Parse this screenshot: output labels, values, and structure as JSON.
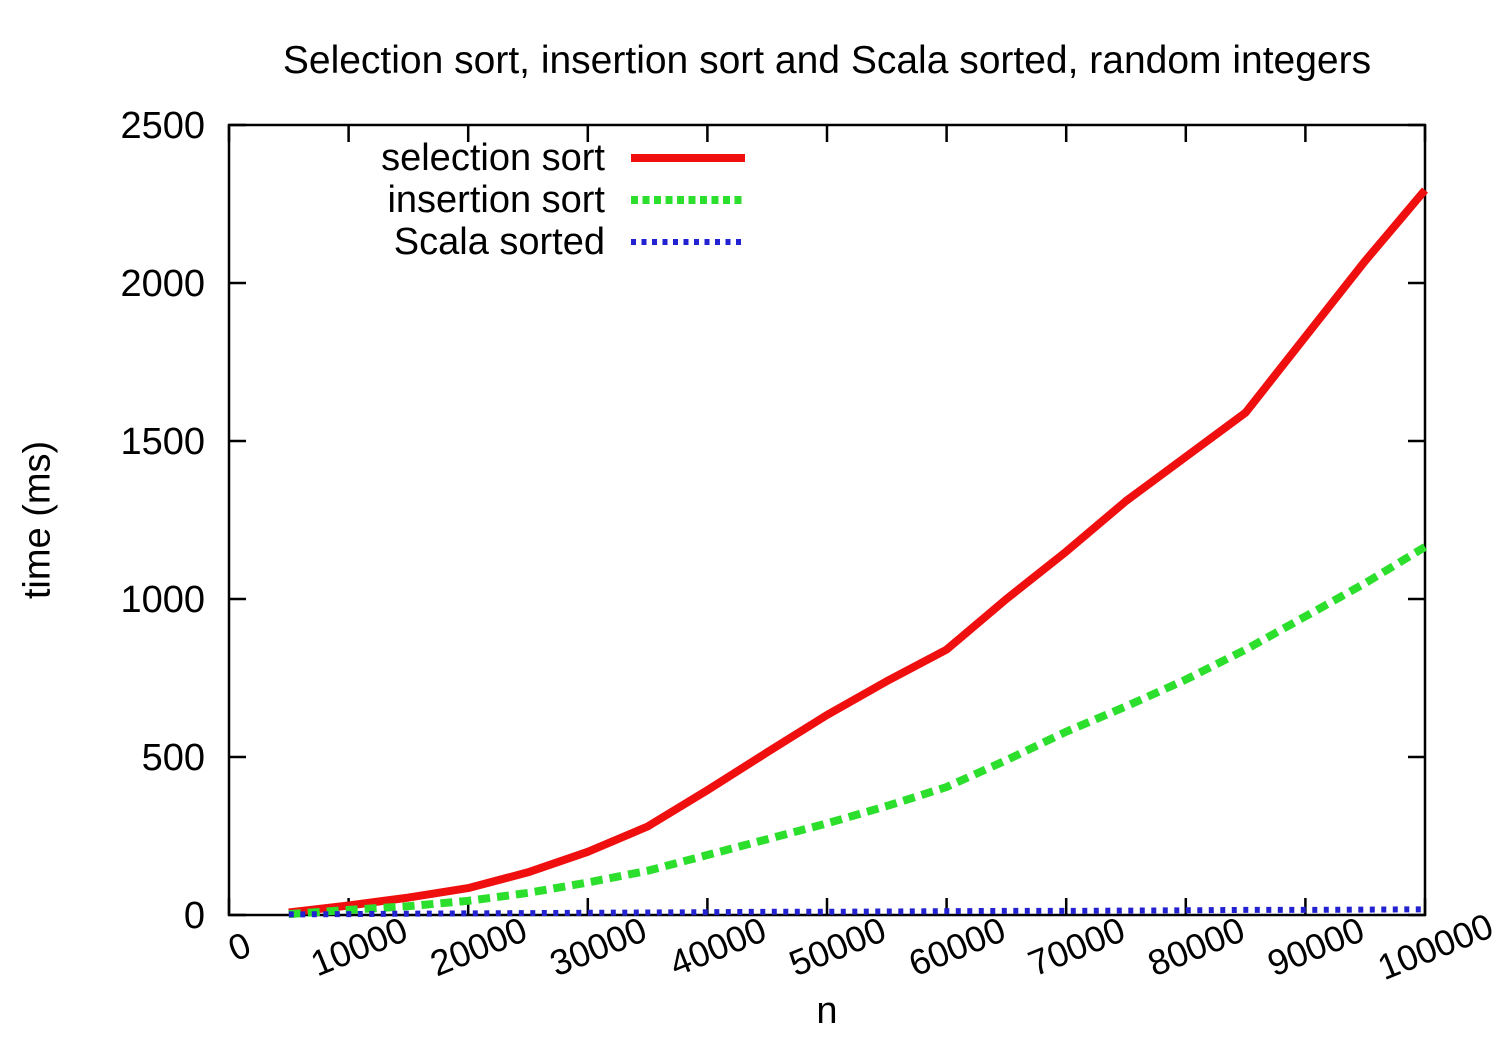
{
  "chart_data": {
    "type": "line",
    "title": "Selection sort, insertion sort and Scala sorted, random integers",
    "xlabel": "n",
    "ylabel": "time (ms)",
    "xlim": [
      0,
      100000
    ],
    "ylim": [
      0,
      2500
    ],
    "x_ticks": [
      0,
      10000,
      20000,
      30000,
      40000,
      50000,
      60000,
      70000,
      80000,
      90000,
      100000
    ],
    "y_ticks": [
      0,
      500,
      1000,
      1500,
      2000,
      2500
    ],
    "grid": false,
    "legend_position": "inside top-left",
    "axis_color": "#000000",
    "x": [
      5000,
      10000,
      15000,
      20000,
      25000,
      30000,
      35000,
      40000,
      45000,
      50000,
      55000,
      60000,
      65000,
      70000,
      75000,
      80000,
      85000,
      90000,
      95000,
      100000
    ],
    "series": [
      {
        "name": "selection sort",
        "color": "#f00f0f",
        "style": "solid",
        "line_width": 8,
        "values": [
          8,
          30,
          55,
          85,
          135,
          200,
          280,
          395,
          515,
          633,
          740,
          840,
          1000,
          1150,
          1310,
          1450,
          1590,
          1830,
          2070,
          2294
        ]
      },
      {
        "name": "insertion sort",
        "color": "#2cdf2c",
        "style": "dashed",
        "line_width": 8,
        "values": [
          3,
          16,
          28,
          45,
          70,
          103,
          140,
          190,
          240,
          290,
          345,
          405,
          490,
          580,
          660,
          745,
          840,
          945,
          1050,
          1165
        ]
      },
      {
        "name": "Scala sorted",
        "color": "#2222d2",
        "style": "dotted",
        "line_width": 6,
        "values": [
          2,
          3,
          4,
          5,
          6,
          7,
          8,
          9,
          10,
          10,
          11,
          12,
          13,
          13,
          14,
          15,
          16,
          16,
          17,
          18
        ]
      }
    ]
  }
}
